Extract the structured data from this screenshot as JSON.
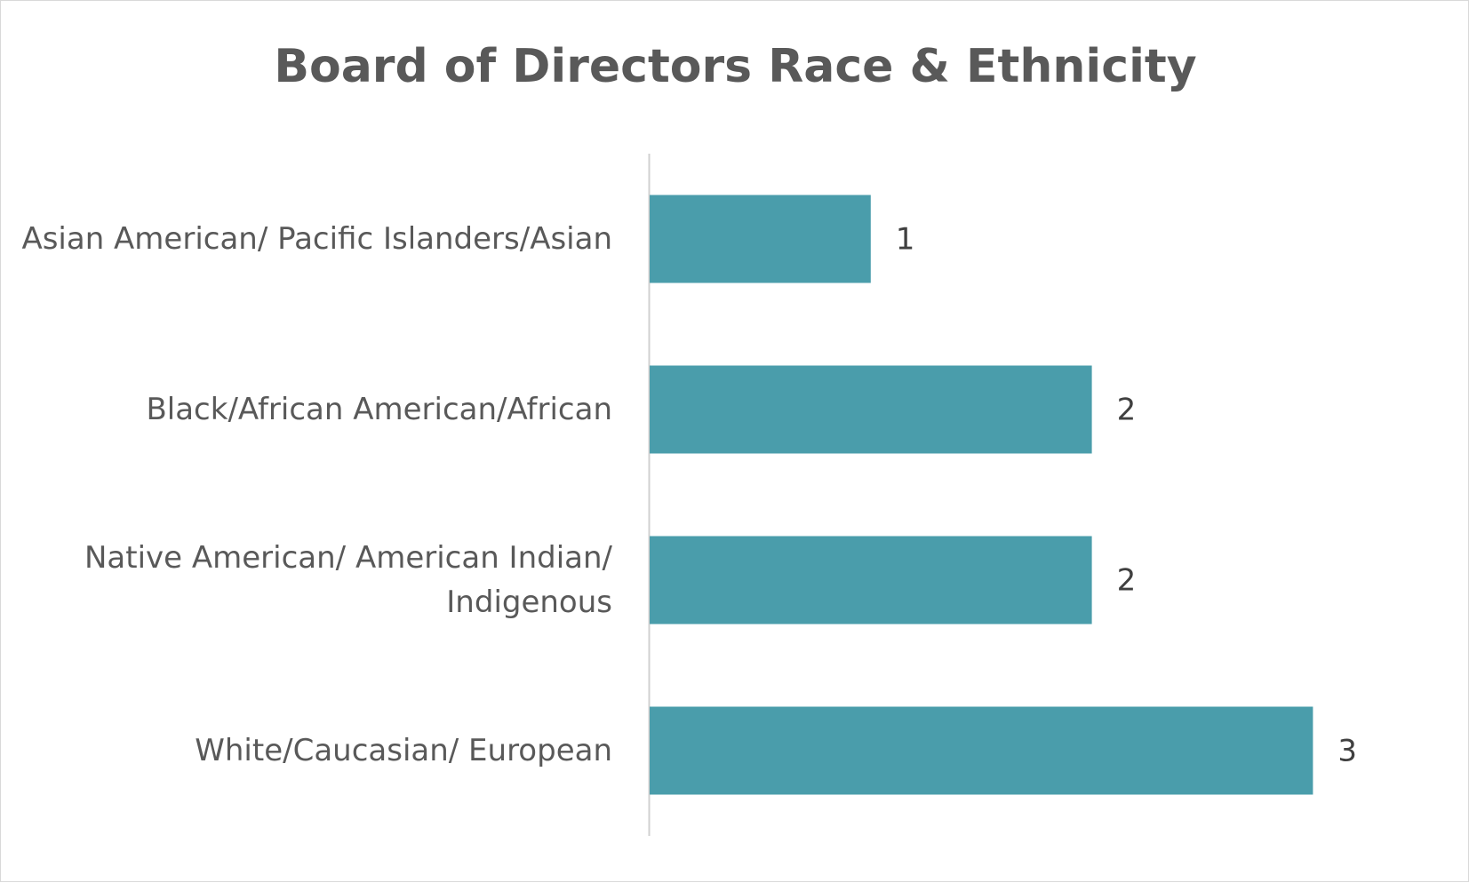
{
  "chart_data": {
    "type": "bar",
    "orientation": "horizontal",
    "title": "Board of Directors Race & Ethnicity",
    "categories": [
      "Asian American/ Pacific Islanders/Asian",
      "Black/African American/African",
      "Native American/ American Indian/ Indigenous",
      "White/Caucasian/ European"
    ],
    "values": [
      1,
      2,
      2,
      3
    ],
    "color": "#4a9dab"
  }
}
